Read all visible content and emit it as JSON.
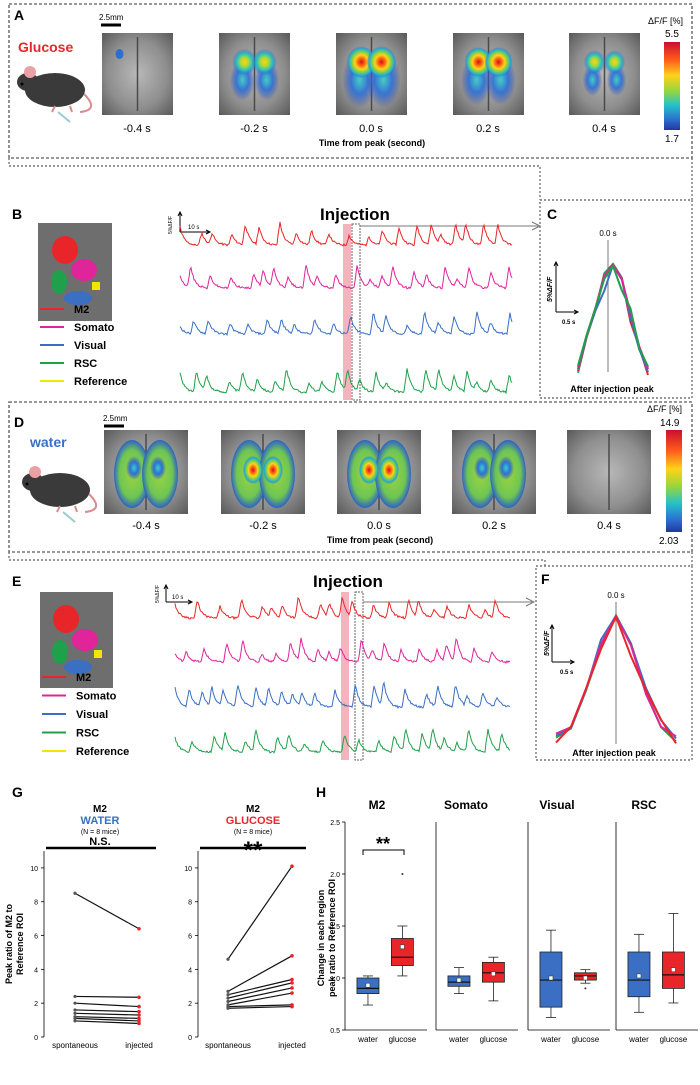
{
  "panels": {
    "A": {
      "letter": "A",
      "condition": "Glucose",
      "condition_color": "#e8262a",
      "scale_bar": "2.5mm",
      "time_labels": [
        "-0.4 s",
        "-0.2 s",
        "0.0 s",
        "0.2 s",
        "0.4 s"
      ],
      "axis_label": "Time from peak (second)",
      "colorbar_title": "ΔF/F [%]",
      "colorbar_max": "5.5",
      "colorbar_min": "1.7",
      "activation_levels": [
        0.05,
        0.55,
        0.95,
        0.8,
        0.3
      ]
    },
    "B": {
      "letter": "B",
      "injection_label": "Injection",
      "scale_y": "5%ΔF/F",
      "scale_x": "10 s",
      "legend": [
        {
          "name": "M2",
          "color": "#e8262a"
        },
        {
          "name": "Somato",
          "color": "#e0249a"
        },
        {
          "name": "Visual",
          "color": "#3a6fc4"
        },
        {
          "name": "RSC",
          "color": "#1fa04a"
        },
        {
          "name": "Reference",
          "color": "#f2e600"
        }
      ]
    },
    "C": {
      "letter": "C",
      "peak_label": "0.0 s",
      "ylabel": "5%ΔF/F",
      "xscale": "0.5 s",
      "caption": "After injection peak"
    },
    "D": {
      "letter": "D",
      "condition": "water",
      "condition_color": "#3a6fc4",
      "scale_bar": "2.5mm",
      "time_labels": [
        "-0.4 s",
        "-0.2 s",
        "0.0 s",
        "0.2 s",
        "0.4 s"
      ],
      "axis_label": "Time from peak (second)",
      "colorbar_title": "ΔF/F [%]",
      "colorbar_max": "14.9",
      "colorbar_min": "2.03",
      "activation_levels": [
        0.45,
        0.85,
        0.95,
        0.4,
        0.05
      ]
    },
    "E": {
      "letter": "E",
      "injection_label": "Injection",
      "scale_y": "5%ΔF/F",
      "scale_x": "10 s",
      "legend": [
        {
          "name": "M2",
          "color": "#e8262a"
        },
        {
          "name": "Somato",
          "color": "#e0249a"
        },
        {
          "name": "Visual",
          "color": "#3a6fc4"
        },
        {
          "name": "RSC",
          "color": "#1fa04a"
        },
        {
          "name": "Reference",
          "color": "#f2e600"
        }
      ]
    },
    "F": {
      "letter": "F",
      "peak_label": "0.0 s",
      "ylabel": "5%ΔF/F",
      "xscale": "0.5 s",
      "caption": "After injection peak"
    },
    "G": {
      "letter": "G",
      "ylabel_line1": "Peak ratio of M2 to",
      "ylabel_line2": "Reference ROI",
      "xlabels": [
        "spontaneous",
        "injected"
      ],
      "water": {
        "title": "M2",
        "condition": "WATER",
        "condition_color": "#3a6fc4",
        "n": "(N = 8 mice)",
        "sig": "N.S."
      },
      "glucose": {
        "title": "M2",
        "condition": "GLUCOSE",
        "condition_color": "#e8262a",
        "n": "(N = 8 mice)",
        "sig": "**"
      }
    },
    "H": {
      "letter": "H",
      "ylabel_line1": "Change in each region",
      "ylabel_line2": "peak ratio to Reference ROI",
      "sig": "**",
      "titles": [
        "M2",
        "Somato",
        "Visual",
        "RSC"
      ],
      "xlabels": [
        "water",
        "glucose"
      ]
    }
  },
  "chart_data": [
    {
      "type": "line",
      "title": "M2 WATER",
      "categories": [
        "spontaneous",
        "injected"
      ],
      "ylim": [
        0,
        11
      ],
      "yticks": [
        0,
        2,
        4,
        6,
        8,
        10
      ],
      "series": [
        {
          "name": "mouse 1",
          "values": [
            8.5,
            6.4
          ]
        },
        {
          "name": "mouse 2",
          "values": [
            2.4,
            2.35
          ]
        },
        {
          "name": "mouse 3",
          "values": [
            2.0,
            1.8
          ]
        },
        {
          "name": "mouse 4",
          "values": [
            1.6,
            1.5
          ]
        },
        {
          "name": "mouse 5",
          "values": [
            1.4,
            1.3
          ]
        },
        {
          "name": "mouse 6",
          "values": [
            1.2,
            1.1
          ]
        },
        {
          "name": "mouse 7",
          "values": [
            1.1,
            0.95
          ]
        },
        {
          "name": "mouse 8",
          "values": [
            0.95,
            0.8
          ]
        }
      ]
    },
    {
      "type": "line",
      "title": "M2 GLUCOSE",
      "categories": [
        "spontaneous",
        "injected"
      ],
      "ylim": [
        0,
        11
      ],
      "yticks": [
        0,
        2,
        4,
        6,
        8,
        10
      ],
      "series": [
        {
          "name": "mouse 1",
          "values": [
            4.6,
            10.1
          ]
        },
        {
          "name": "mouse 2",
          "values": [
            2.7,
            4.8
          ]
        },
        {
          "name": "mouse 3",
          "values": [
            2.5,
            3.4
          ]
        },
        {
          "name": "mouse 4",
          "values": [
            2.3,
            3.2
          ]
        },
        {
          "name": "mouse 5",
          "values": [
            2.1,
            2.9
          ]
        },
        {
          "name": "mouse 6",
          "values": [
            1.9,
            2.6
          ]
        },
        {
          "name": "mouse 7",
          "values": [
            1.8,
            1.9
          ]
        },
        {
          "name": "mouse 8",
          "values": [
            1.7,
            1.8
          ]
        }
      ]
    },
    {
      "type": "box",
      "title": "Change in each region peak ratio to Reference ROI",
      "categories": [
        "water",
        "glucose"
      ],
      "ylim": [
        0.5,
        2.5
      ],
      "yticks": [
        0.5,
        1.0,
        1.5,
        2.0,
        2.5
      ],
      "groups": [
        {
          "region": "M2",
          "water": {
            "min": 0.74,
            "q1": 0.85,
            "median": 0.9,
            "q3": 1.0,
            "max": 1.02,
            "mean": 0.93
          },
          "glucose": {
            "min": 1.02,
            "q1": 1.12,
            "median": 1.2,
            "q3": 1.38,
            "max": 1.5,
            "mean": 1.3,
            "outliers": [
              2.0
            ]
          }
        },
        {
          "region": "Somato",
          "water": {
            "min": 0.85,
            "q1": 0.92,
            "median": 0.96,
            "q3": 1.02,
            "max": 1.1,
            "mean": 0.98
          },
          "glucose": {
            "min": 0.78,
            "q1": 0.96,
            "median": 1.05,
            "q3": 1.15,
            "max": 1.2,
            "mean": 1.04
          }
        },
        {
          "region": "Visual",
          "water": {
            "min": 0.62,
            "q1": 0.72,
            "median": 0.98,
            "q3": 1.25,
            "max": 1.46,
            "mean": 1.0
          },
          "glucose": {
            "min": 0.95,
            "q1": 0.98,
            "median": 1.02,
            "q3": 1.05,
            "max": 1.08,
            "mean": 1.0,
            "outliers": [
              0.9
            ]
          }
        },
        {
          "region": "RSC",
          "water": {
            "min": 0.67,
            "q1": 0.82,
            "median": 0.98,
            "q3": 1.25,
            "max": 1.42,
            "mean": 1.02
          },
          "glucose": {
            "min": 0.76,
            "q1": 0.9,
            "median": 1.03,
            "q3": 1.25,
            "max": 1.62,
            "mean": 1.08
          }
        }
      ]
    }
  ]
}
